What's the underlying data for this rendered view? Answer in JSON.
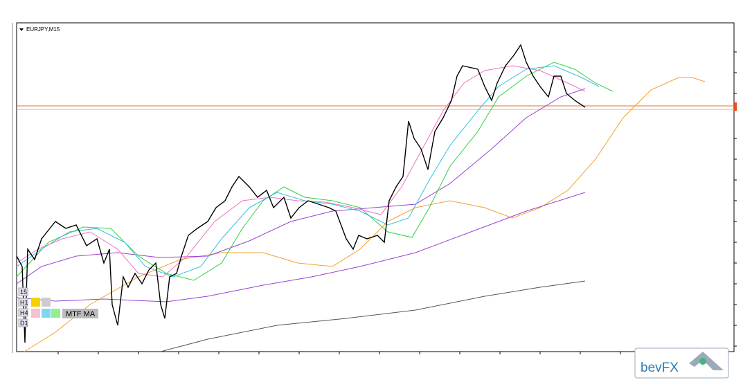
{
  "chart": {
    "symbol": "EURJPY,M15"
  },
  "panel": {
    "timeframes": [
      "15",
      "H1",
      "H4",
      "D1"
    ],
    "label": "MTF MA"
  },
  "logo": {
    "text": "bevFX"
  }
}
